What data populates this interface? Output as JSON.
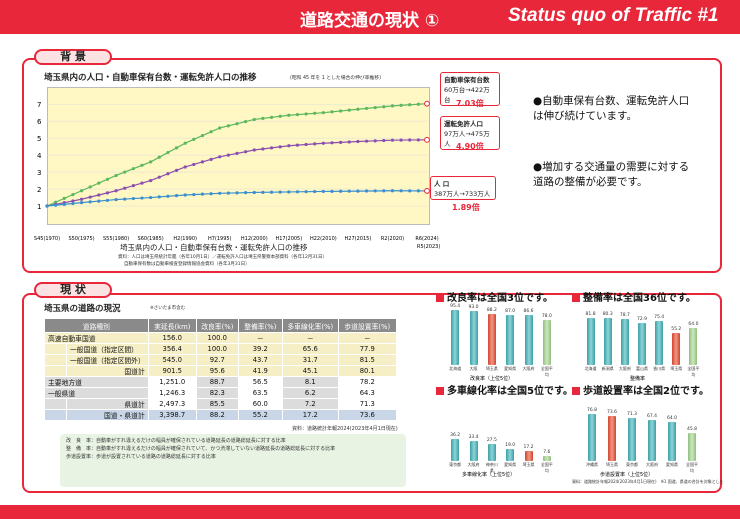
{
  "header": {
    "title_jp": "道路交通の現状 ①",
    "title_en": "Status quo of Traffic #1"
  },
  "background_section": {
    "tab_label": "背 景",
    "chart_title": "埼玉県内の人口・自動車保有台数・運転免許人口の推移",
    "chart_note": "(昭和 45 年を 1 とした場合の伸び率推移)",
    "chart_caption": "埼玉県内の人口・自動車保有台数・運転免許人口の推移",
    "source1": "資料：人口は埼玉県統計年鑑（各年10月1日）／運転免許人口は埼玉県警察本部資料（各年12月31日）",
    "source2": "自動車保有数は自動車検査登録情報協会資料（各年3月31日）",
    "callouts": {
      "vehicles": {
        "label": "自動車保有台数",
        "detail": "60万台→422万台",
        "ratio": "7.03倍"
      },
      "licenses": {
        "label": "運転免許人口",
        "detail": "97万人→475万人",
        "ratio": "4.90倍"
      },
      "population": {
        "label": "人 口",
        "detail": "387万人→733万人",
        "ratio": "1.89倍"
      }
    },
    "bullets": [
      "●自動車保有台数、運転免許人口は伸び続けています。",
      "●増加する交通量の需要に対する道路の整備が必要です。"
    ]
  },
  "chart_data": {
    "type": "line",
    "title": "埼玉県内の人口・自動車保有台数・運転免許人口の推移",
    "x": [
      "S45(1970)",
      "S50(1975)",
      "S55(1980)",
      "S60(1985)",
      "H2(1990)",
      "H7(1995)",
      "H12(2000)",
      "H17(2005)",
      "H22(2010)",
      "H27(2015)",
      "R2(2020)",
      "R6(2024)"
    ],
    "ylim": [
      0,
      7.6
    ],
    "yticks": [
      1,
      2,
      3,
      4,
      5,
      6,
      7
    ],
    "series": [
      {
        "name": "自動車保有台数",
        "color": "#5cb85c",
        "values": [
          1.0,
          1.9,
          2.8,
          3.6,
          4.7,
          5.6,
          6.1,
          6.35,
          6.5,
          6.7,
          6.9,
          7.03
        ]
      },
      {
        "name": "運転免許人口",
        "color": "#8b4faf",
        "values": [
          1.0,
          1.4,
          1.9,
          2.5,
          3.3,
          3.9,
          4.3,
          4.55,
          4.7,
          4.8,
          4.88,
          4.9
        ]
      },
      {
        "name": "人口",
        "color": "#3a8fd0",
        "values": [
          1.0,
          1.2,
          1.38,
          1.5,
          1.65,
          1.75,
          1.8,
          1.83,
          1.86,
          1.88,
          1.9,
          1.89
        ]
      }
    ],
    "r5_label": "R5(2023)"
  },
  "status_section": {
    "tab_label": "現 状",
    "table_title": "埼玉県の道路の現況",
    "table_title_note": "※さいたま市含む",
    "columns": [
      "道路種別",
      "実延長(km)",
      "改良率(%)",
      "整備率(%)",
      "多車線化率(%)",
      "歩道設置率(%)"
    ],
    "rows": [
      {
        "cat": "高速自動車国道",
        "sub": "",
        "vals": [
          "156.0",
          "100.0",
          "－",
          "－",
          "－"
        ],
        "style": "hl"
      },
      {
        "cat": "",
        "sub": "一般国道（指定区間）",
        "vals": [
          "356.4",
          "100.0",
          "39.2",
          "65.6",
          "77.9"
        ],
        "style": "hl"
      },
      {
        "cat": "",
        "sub": "一般国道（指定区間外）",
        "vals": [
          "545.0",
          "92.7",
          "43.7",
          "31.7",
          "81.5"
        ],
        "style": "hl"
      },
      {
        "cat": "",
        "sub": "国道計",
        "vals": [
          "901.5",
          "95.6",
          "41.9",
          "45.1",
          "80.1"
        ],
        "style": "hl"
      },
      {
        "cat": "主要地方道",
        "sub": "",
        "vals": [
          "1,251.0",
          "88.7",
          "56.5",
          "8.1",
          "78.2"
        ],
        "style": ""
      },
      {
        "cat": "一般県道",
        "sub": "",
        "vals": [
          "1,246.3",
          "82.3",
          "63.5",
          "6.2",
          "64.3"
        ],
        "style": ""
      },
      {
        "cat": "",
        "sub": "県道計",
        "vals": [
          "2,497.3",
          "85.5",
          "60.0",
          "7.2",
          "71.3"
        ],
        "style": ""
      },
      {
        "cat": "",
        "sub": "国道・県道計",
        "vals": [
          "3,398.7",
          "88.2",
          "55.2",
          "17.2",
          "73.6"
        ],
        "style": "tot"
      }
    ],
    "table_source": "資料：道路統計年報2024(2023年4月1日現在)",
    "notes": [
      "改　良　率：自動車がすれ違えるだけの幅員が確保されている道路延長の道路総延長に対する比率",
      "整　備　率：自動車がすれ違えるだけの幅員が確保されていて、かつ渋滞していない道路延長の道路総延長に対する比率",
      "歩道設置率：歩道が設置されている道路の道路総延長に対する比率"
    ],
    "mini_headings": [
      "改良率は全国3位です。",
      "整備率は全国36位です。",
      "多車線化率は全国5位です。",
      "歩道設置率は全国2位です。"
    ],
    "mini_sub": [
      "改良率（上位5位）",
      "整備率",
      "多車線化率（上位5位）",
      "歩道設置率（上位5位）"
    ],
    "mini_source": "資料：道路統計年報2024(2023年4月1日現在)　※1 国道、県道の合計を対象とした"
  },
  "mini_charts": [
    {
      "values": [
        "95.4",
        "93.0",
        "88.2",
        "87.0",
        "86.6",
        "78.0"
      ],
      "labels": [
        "北海道",
        "大阪",
        "埼玉県",
        "愛知県",
        "大阪府",
        "全国平均"
      ],
      "colors": [
        "t1",
        "t1",
        "r1",
        "t1",
        "t1",
        "g1"
      ],
      "fills": [
        95.4,
        93.0,
        88.2,
        87.0,
        86.6,
        78.0
      ]
    },
    {
      "values": [
        "81.8",
        "80.3",
        "78.7",
        "72.9",
        "75.4",
        "55.2",
        "64.0"
      ],
      "labels": [
        "北海道",
        "新潟県",
        "大阪府",
        "富山県",
        "香川県",
        "埼玉県",
        "全国平均"
      ],
      "colors": [
        "t1",
        "t1",
        "t1",
        "t1",
        "t1",
        "r1",
        "g1"
      ],
      "fills": [
        81.8,
        80.3,
        78.7,
        72.9,
        75.4,
        55.2,
        64.0
      ]
    },
    {
      "values": [
        "36.2",
        "33.4",
        "27.5",
        "19.0",
        "17.2",
        "7.6"
      ],
      "labels": [
        "東京都",
        "大阪府",
        "神奈川県",
        "愛知県",
        "埼玉県",
        "全国平均"
      ],
      "colors": [
        "t1",
        "t1",
        "t1",
        "t1",
        "r1",
        "g1"
      ],
      "fills": [
        36.2,
        33.4,
        27.5,
        19.0,
        17.2,
        7.6
      ]
    },
    {
      "values": [
        "76.8",
        "73.6",
        "71.3",
        "67.4",
        "64.0",
        "45.8"
      ],
      "labels": [
        "沖縄県",
        "埼玉県",
        "東京都",
        "大阪府",
        "愛知県",
        "全国平均"
      ],
      "colors": [
        "t1",
        "r1",
        "t1",
        "t1",
        "t1",
        "g1"
      ],
      "fills": [
        76.8,
        73.6,
        71.3,
        67.4,
        64.0,
        45.8
      ]
    }
  ]
}
